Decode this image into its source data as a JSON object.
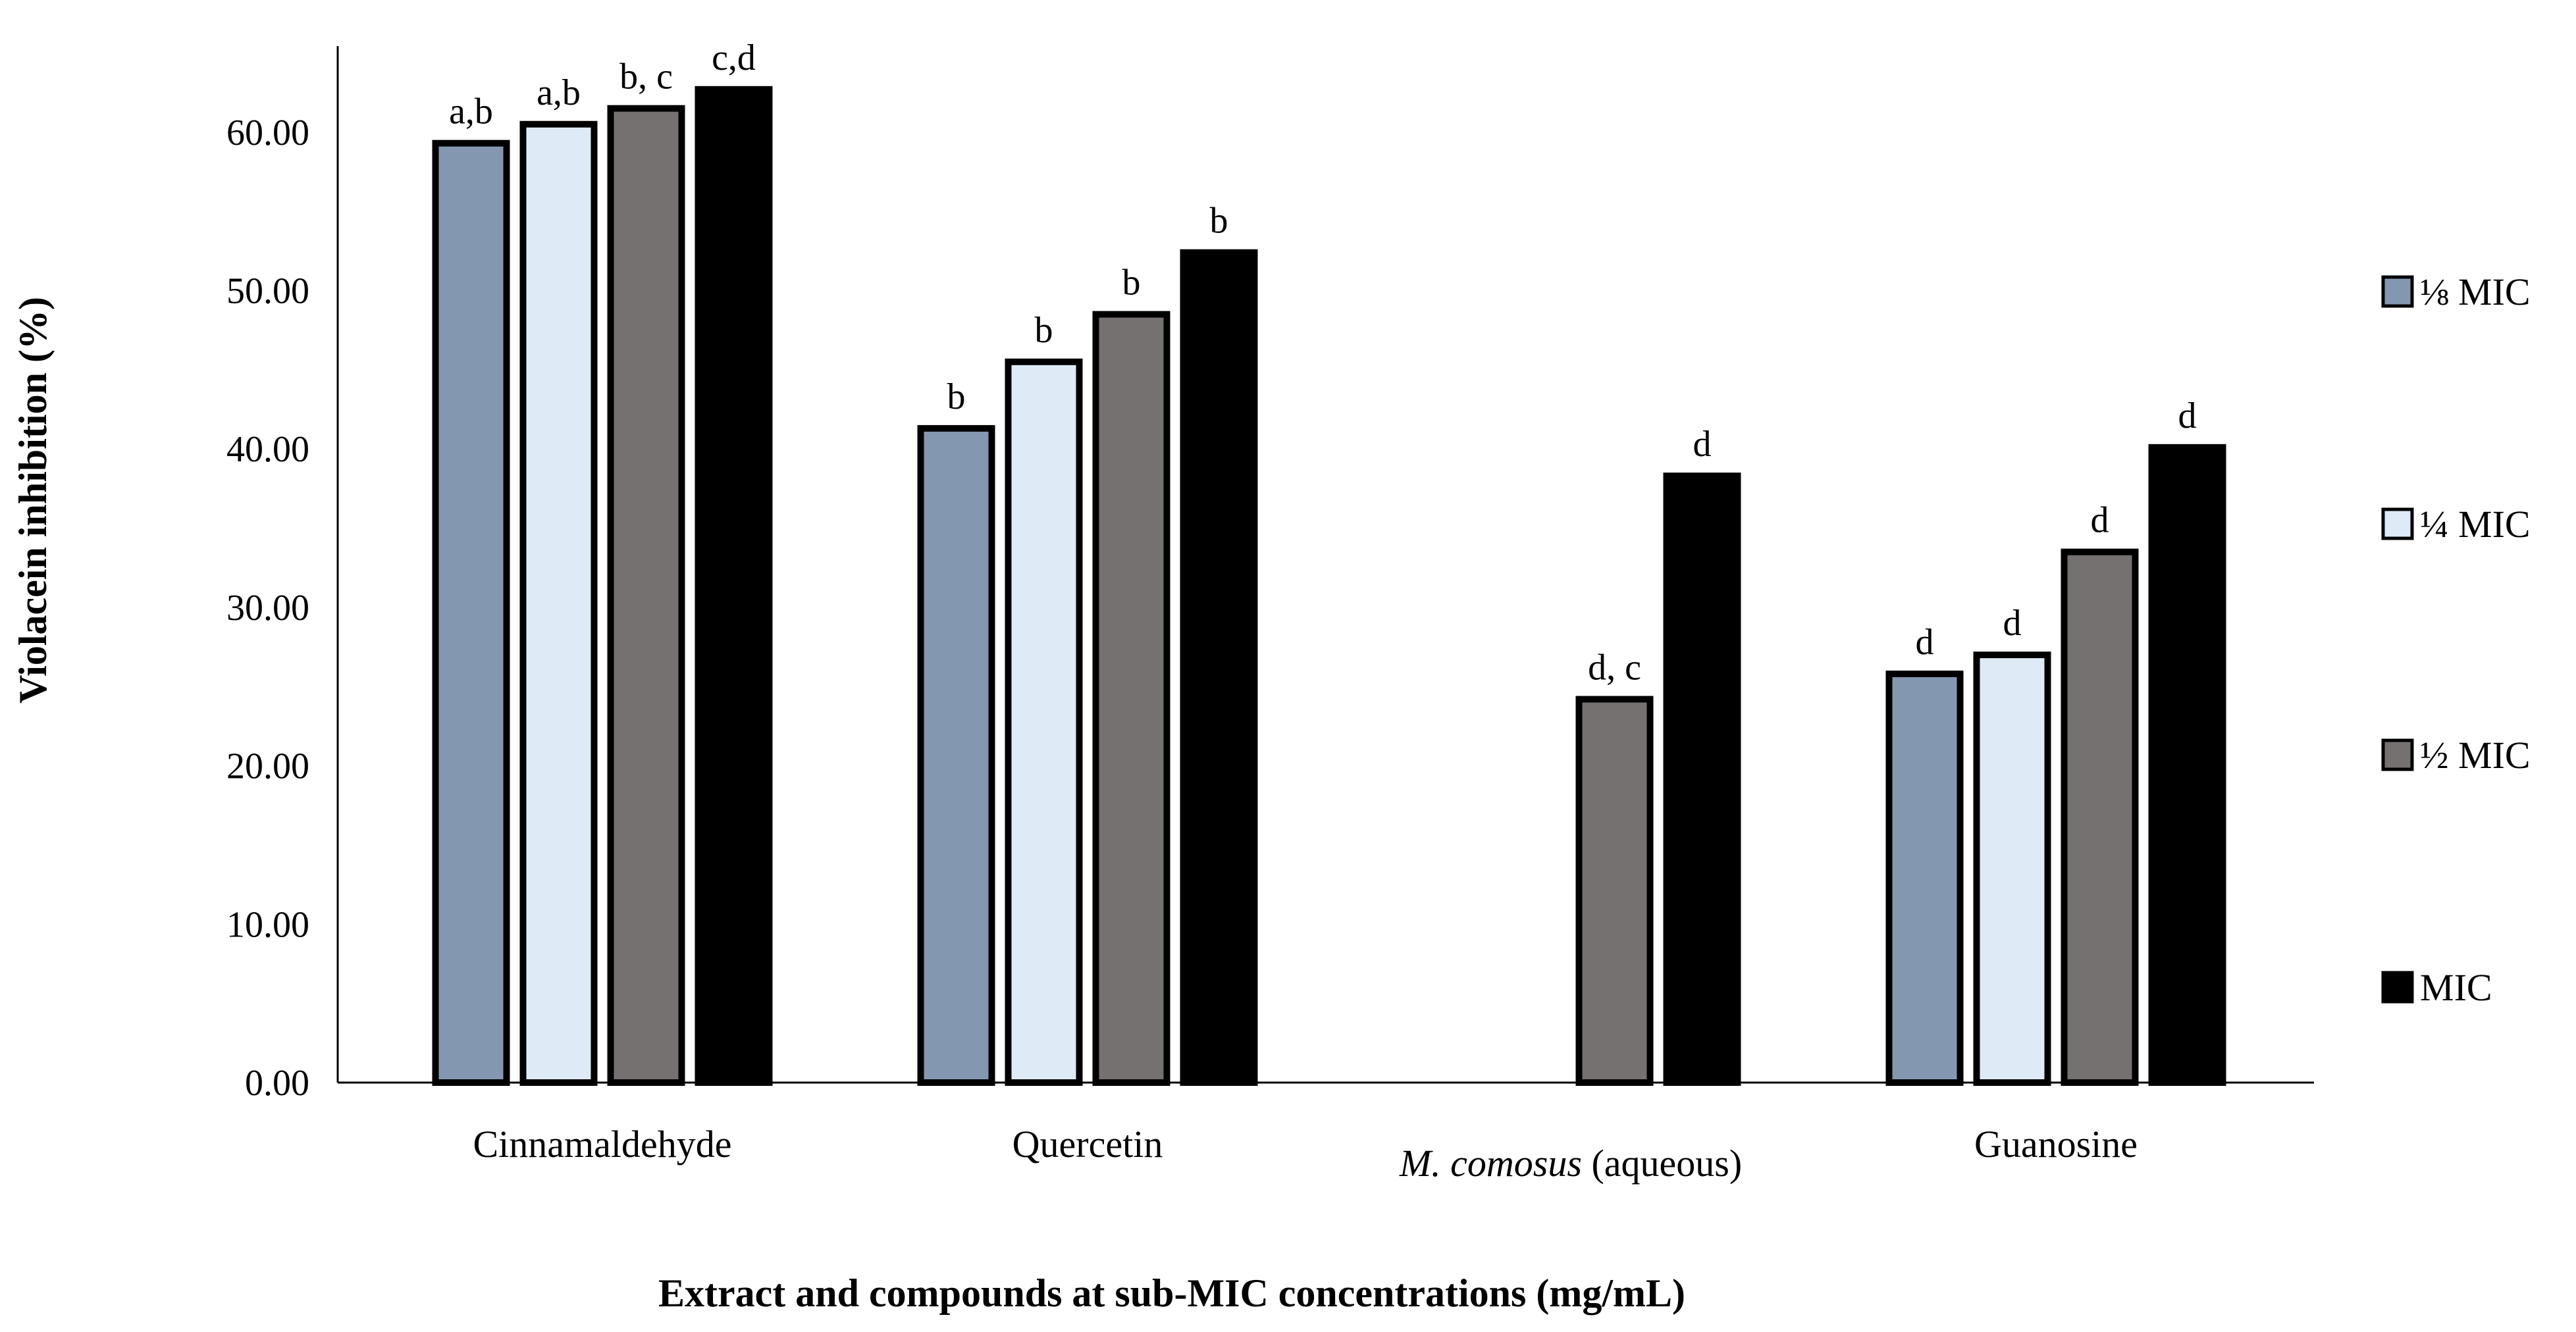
{
  "chart_data": {
    "type": "bar",
    "title": "",
    "xlabel": "Extract and compounds at sub-MIC concentrations (mg/mL)",
    "ylabel": "Violacein inhibition (%)",
    "ylim": [
      0,
      65
    ],
    "yticks": [
      "0.00",
      "10.00",
      "20.00",
      "30.00",
      "40.00",
      "50.00",
      "60.00"
    ],
    "categories": [
      {
        "italic": "",
        "plain": "Cinnamaldehyde"
      },
      {
        "italic": "",
        "plain": "Quercetin"
      },
      {
        "italic": "M. comosus",
        "plain": " (aqueous)"
      },
      {
        "italic": "",
        "plain": "Guanosine"
      }
    ],
    "series": [
      {
        "name": "⅛ MIC",
        "color": "#8497b0",
        "values": [
          59.3,
          41.3,
          null,
          25.8
        ],
        "labels": [
          "a,b",
          "b",
          "",
          "d"
        ]
      },
      {
        "name": "¼ MIC",
        "color": "#deebf7",
        "values": [
          60.5,
          45.5,
          null,
          27.0
        ],
        "labels": [
          "a,b",
          "b",
          "",
          "d"
        ]
      },
      {
        "name": "½ MIC",
        "color": "#767171",
        "values": [
          61.5,
          48.5,
          24.2,
          33.5
        ],
        "labels": [
          "b, c",
          "b",
          "d, c",
          "d"
        ]
      },
      {
        "name": "MIC",
        "color": "#000000",
        "values": [
          62.7,
          52.4,
          38.3,
          40.1
        ],
        "labels": [
          "c,d",
          "b",
          "d",
          "d"
        ]
      }
    ]
  }
}
